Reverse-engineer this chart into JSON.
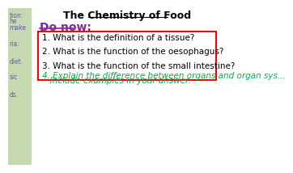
{
  "title": "The Chemistry of Food",
  "do_now_label": "Do now:",
  "questions": [
    "1. What is the definition of a tissue?",
    "2. What is the function of the oesophagus?",
    "3. What is the function of the small intestine?"
  ],
  "extension_lines": [
    "4. Explain the difference between organs and organ sys...",
    "   Include examples in your answer."
  ],
  "left_sidebar_color": "#c6d9b0",
  "sidebar_text_color": "#5b5ea6",
  "bg_color": "#ffffff",
  "title_color": "#000000",
  "do_now_color": "#7030a0",
  "question_color": "#000000",
  "extension_color": "#00b050",
  "box_border_color": "#ff0000",
  "title_fontsize": 9,
  "do_now_fontsize": 10,
  "question_fontsize": 7.5,
  "extension_fontsize": 7.5
}
